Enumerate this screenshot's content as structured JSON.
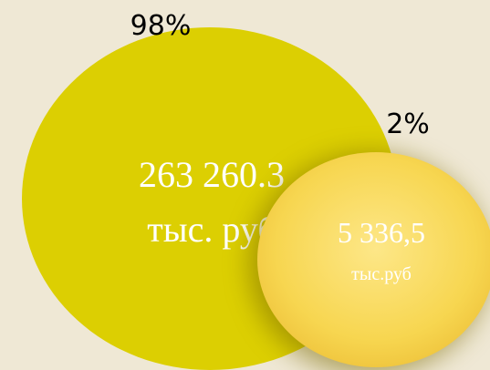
{
  "items": [
    {
      "percent": "98%",
      "value": "263 260.3",
      "unit": "тыс. руб"
    },
    {
      "percent": "2%",
      "value": "5 336,5",
      "unit": "тыс.руб"
    }
  ]
}
